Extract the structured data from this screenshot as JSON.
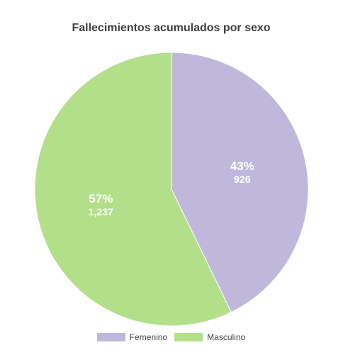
{
  "chart_data": {
    "type": "pie",
    "title": "Fallecimientos acumulados por sexo",
    "slices": [
      {
        "label": "Femenino",
        "value": 926,
        "value_text": "926",
        "percent_text": "43%",
        "color": "#bfb8dc"
      },
      {
        "label": "Masculino",
        "value": 1237,
        "value_text": "1,237",
        "percent_text": "57%",
        "color": "#b3df8a"
      }
    ],
    "start_angle": "12 o'clock",
    "direction": "clockwise",
    "legend_position": "bottom"
  }
}
